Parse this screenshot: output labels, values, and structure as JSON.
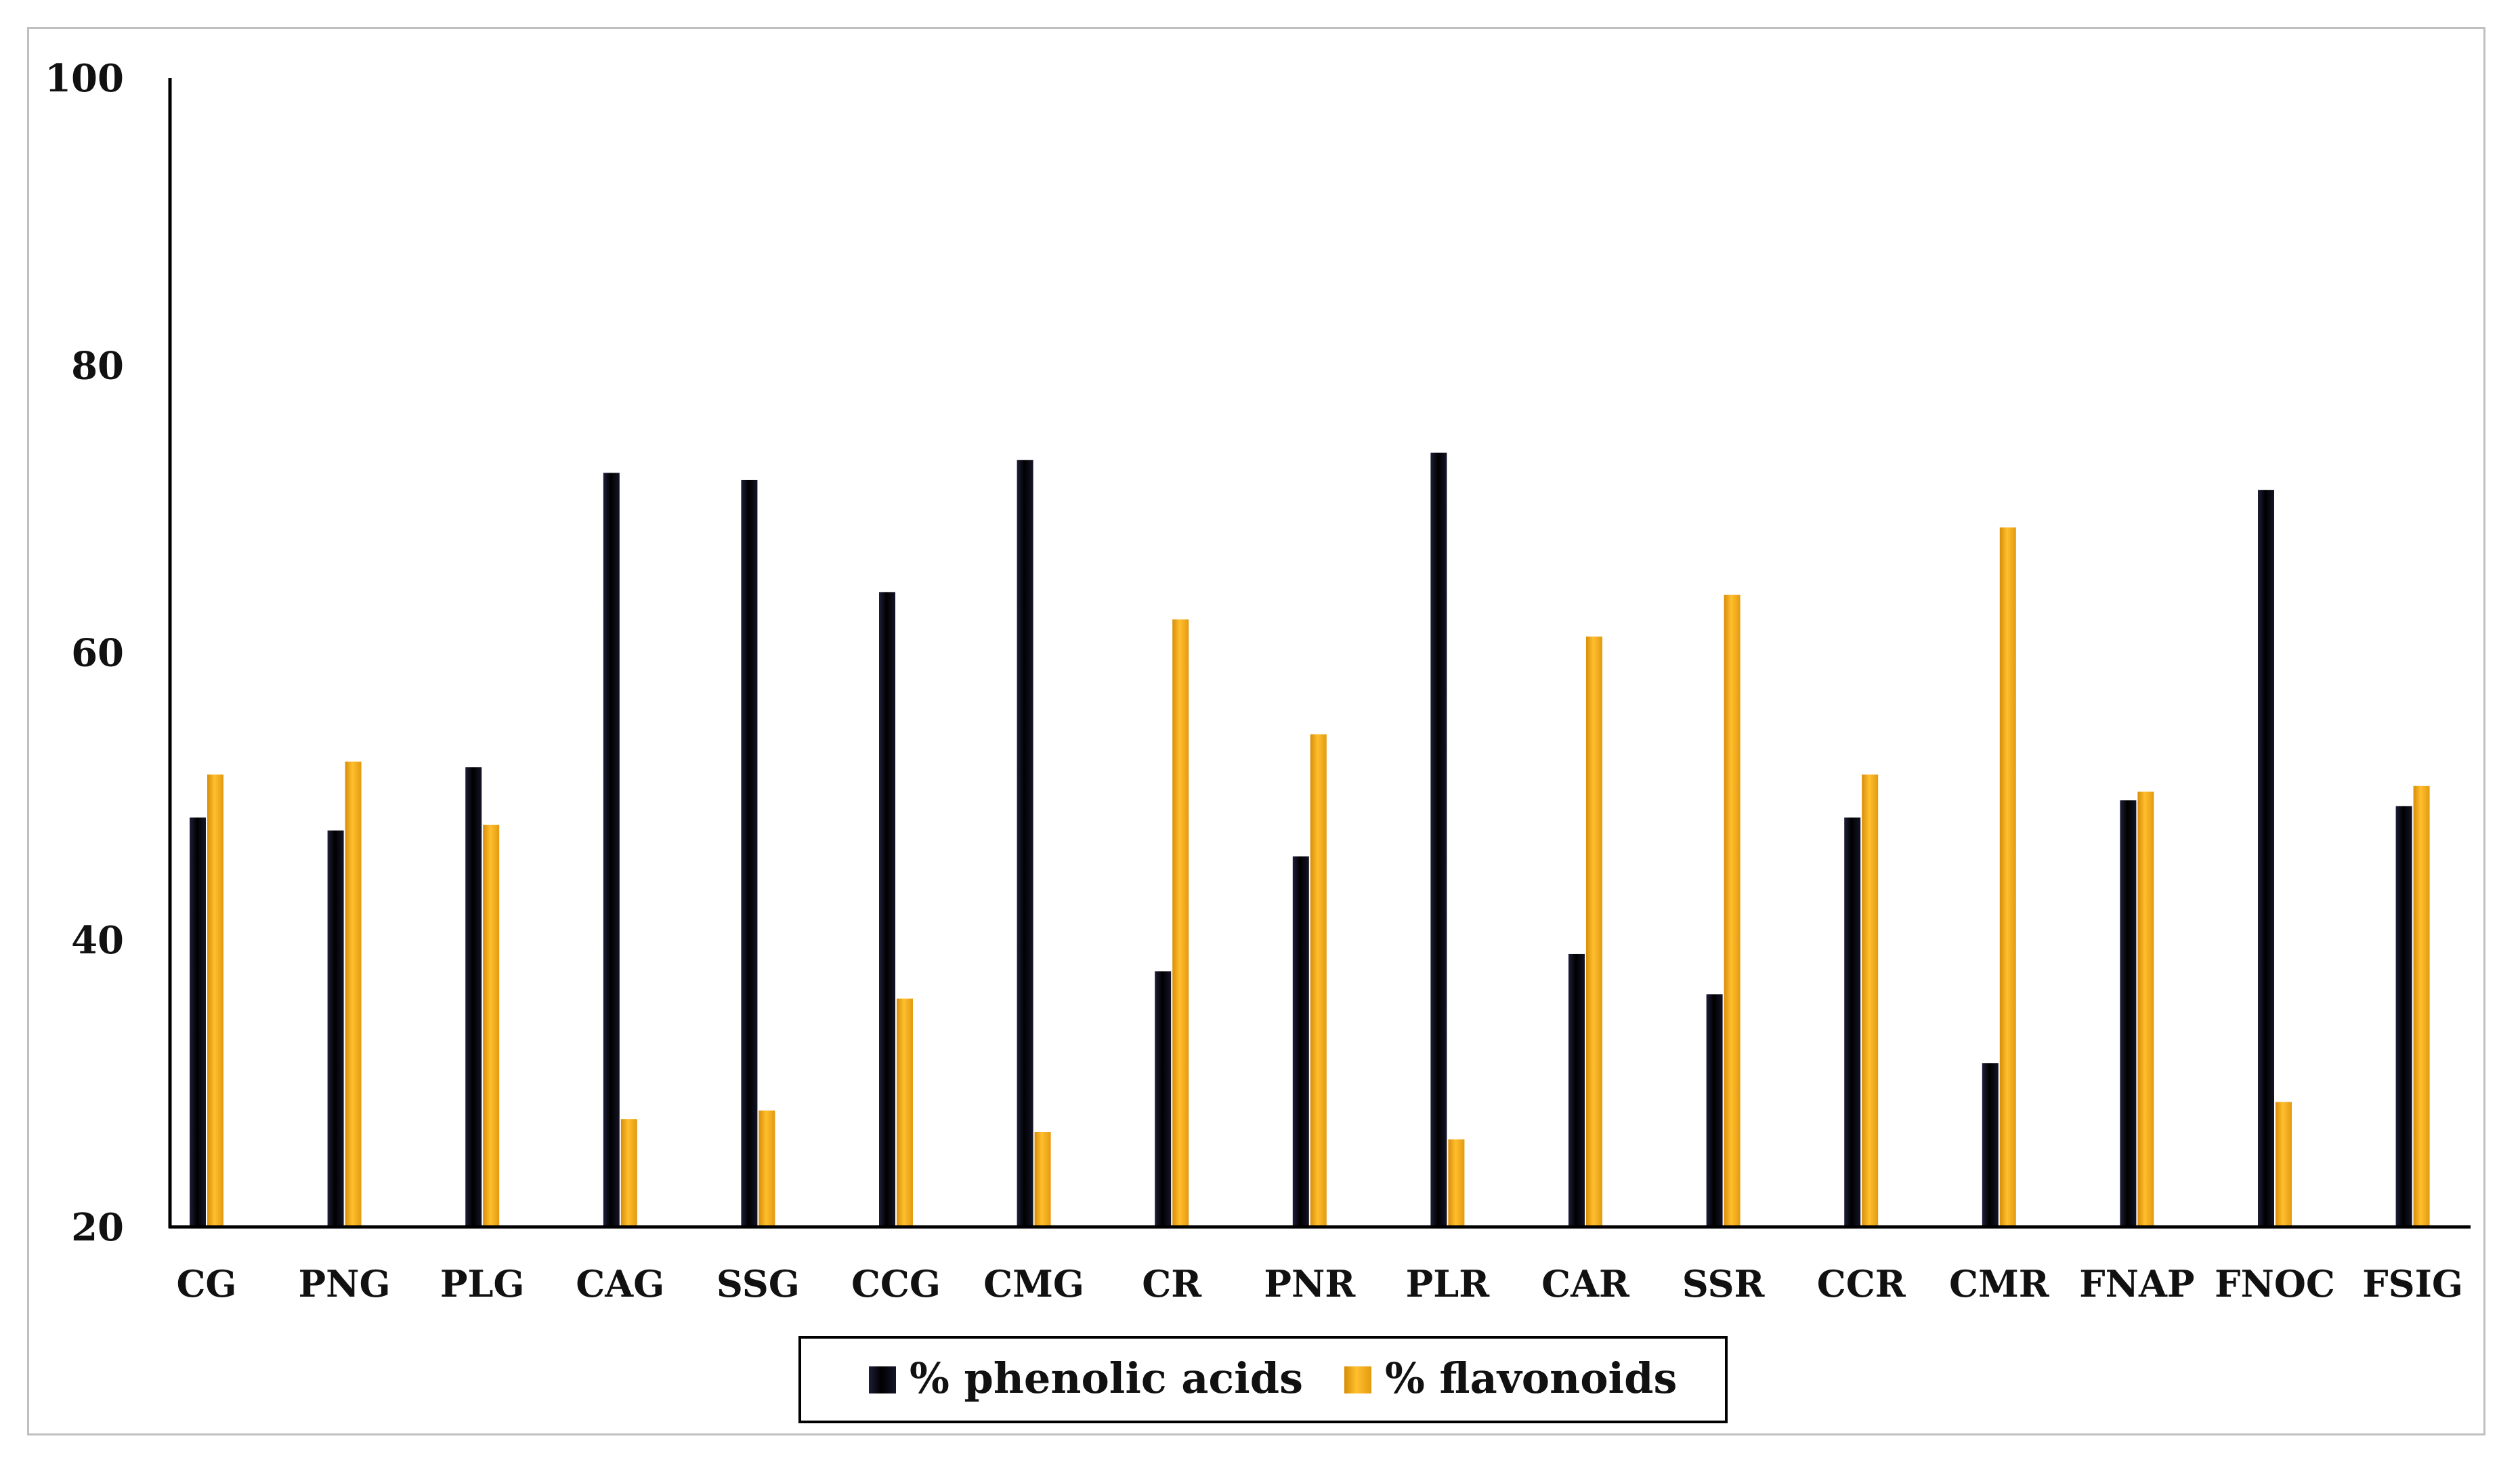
{
  "chart_data": {
    "type": "bar",
    "title": "",
    "xlabel": "",
    "ylabel": "",
    "ylim": [
      20,
      100
    ],
    "yticks": [
      20,
      40,
      60,
      80,
      100
    ],
    "grid": false,
    "legend_position": "bottom-center",
    "categories": [
      "CG",
      "PNG",
      "PLG",
      "CAG",
      "SSG",
      "CCG",
      "CMG",
      "CR",
      "PNR",
      "PLR",
      "CAR",
      "SSR",
      "CCR",
      "CMR",
      "FNAP",
      "FNOC",
      "FSIG"
    ],
    "series": [
      {
        "name": "% phenolic acids",
        "color": "#0b0b1e",
        "values": [
          48.5,
          47.6,
          52.0,
          72.5,
          72.0,
          64.2,
          73.4,
          37.8,
          45.8,
          73.9,
          39.0,
          36.2,
          48.5,
          31.4,
          49.7,
          71.3,
          49.3
        ]
      },
      {
        "name": "% flavonoids",
        "color": "#f0a81a",
        "values": [
          51.5,
          52.4,
          48.0,
          27.5,
          28.1,
          35.9,
          26.6,
          62.3,
          54.3,
          26.1,
          61.1,
          64.0,
          51.5,
          68.7,
          50.3,
          28.7,
          50.7
        ]
      }
    ]
  }
}
